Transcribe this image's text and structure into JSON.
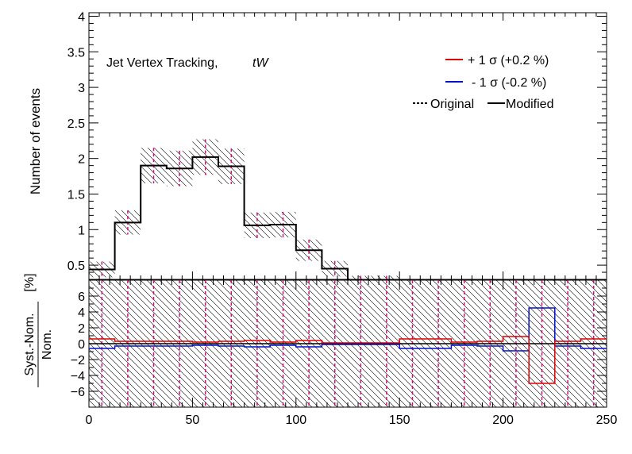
{
  "chart_data": [
    {
      "type": "histogram",
      "annotation": "Jet Vertex Tracking,",
      "process": "tW",
      "ylabel": "Number of events",
      "xlim": [
        0,
        250
      ],
      "ylim": [
        0.3,
        4.05
      ],
      "yticks": [
        0.5,
        1,
        1.5,
        2,
        2.5,
        3,
        3.5,
        4
      ],
      "ytick_labels": [
        "0.5",
        "1",
        "1.5",
        "2",
        "2.5",
        "3",
        "3.5",
        "4"
      ],
      "bin_edges": [
        0,
        12.5,
        25,
        37.5,
        50,
        62.5,
        75,
        87.5,
        100,
        112.5,
        125,
        137.5,
        150,
        162.5,
        175,
        187.5,
        200,
        212.5,
        225,
        237.5,
        250
      ],
      "modified": [
        0.44,
        1.1,
        1.9,
        1.86,
        2.02,
        1.89,
        1.06,
        1.07,
        0.71,
        0.45,
        0.27,
        0.27,
        0.1,
        0.21,
        0.21,
        0.07,
        0.04,
        0.07,
        0.0,
        0.11
      ],
      "uncertainty": [
        0.11,
        0.17,
        0.25,
        0.25,
        0.25,
        0.25,
        0.18,
        0.18,
        0.15,
        0.11,
        0.08,
        0.08,
        0.04,
        0.07,
        0.07,
        0.03,
        0.02,
        0.03,
        0.0,
        0.04
      ],
      "legend": {
        "up_label": "+ 1 σ (+0.2 %)",
        "down_label": "- 1 σ (-0.2 %)",
        "original_label": "Original",
        "modified_label": "Modified",
        "placement": "top-right"
      },
      "colors": {
        "up": "#e00000",
        "down": "#0010cc",
        "nominal": "#000000",
        "dashed": "#d0107a"
      }
    },
    {
      "type": "histogram",
      "ylabel_numerator": "Syst.-Nom.",
      "ylabel_denominator": "Nom.",
      "ylabel_unit": "[%]",
      "xlim": [
        0,
        250
      ],
      "ylim": [
        -8,
        8
      ],
      "yticks": [
        -6,
        -4,
        -2,
        0,
        2,
        4,
        6
      ],
      "ytick_labels": [
        "−6",
        "−4",
        "−2",
        "0",
        "2",
        "4",
        "6"
      ],
      "xticks": [
        0,
        50,
        100,
        150,
        200,
        250
      ],
      "xtick_labels": [
        "0",
        "50",
        "100",
        "150",
        "200",
        "250"
      ],
      "bin_edges": [
        0,
        12.5,
        25,
        37.5,
        50,
        62.5,
        75,
        87.5,
        100,
        112.5,
        125,
        137.5,
        150,
        162.5,
        175,
        187.5,
        200,
        212.5,
        225,
        237.5,
        250
      ],
      "up_ratio": [
        0.6,
        0.3,
        0.3,
        0.3,
        0.2,
        0.3,
        0.4,
        0.2,
        0.4,
        0.1,
        0.1,
        0.1,
        0.6,
        0.6,
        0.2,
        0.3,
        0.9,
        -5.0,
        0.3,
        0.6
      ],
      "down_ratio": [
        -0.6,
        -0.3,
        -0.3,
        -0.3,
        -0.2,
        -0.3,
        -0.4,
        -0.2,
        -0.4,
        -0.1,
        -0.1,
        -0.1,
        -0.6,
        -0.6,
        -0.2,
        -0.3,
        -0.9,
        4.5,
        -0.3,
        -0.6
      ],
      "reference_line": 0
    }
  ]
}
